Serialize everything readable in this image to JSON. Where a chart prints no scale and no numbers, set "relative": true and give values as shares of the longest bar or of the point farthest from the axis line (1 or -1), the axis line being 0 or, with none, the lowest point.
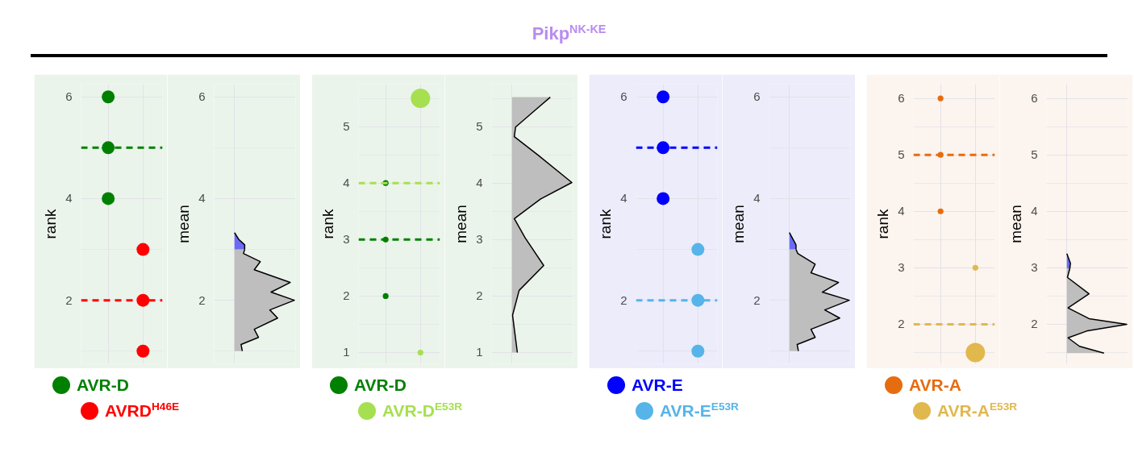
{
  "chart_data": [
    {
      "type": "other",
      "title": "Pikp$^{NK-KE}$"
    },
    {
      "type": "scatter",
      "ylabel": "rank",
      "categories": [
        null,
        null
      ],
      "ylim": [
        0.75,
        6.25
      ],
      "yticks": [
        2,
        4,
        6
      ],
      "grid": true,
      "marker": "circle",
      "legend": "bottom",
      "series": [
        {
          "name": "AVR-D",
          "color": "#008000",
          "values": [
            6,
            null
          ]
        },
        {
          "color": "#008000",
          "values": [
            5,
            null
          ]
        },
        {
          "color": "#008000",
          "values": [
            4,
            null
          ]
        },
        {
          "name": "AVRD$^{H46E}$",
          "color": "#ff0000",
          "values": [
            null,
            3
          ]
        },
        {
          "color": "#ff0000",
          "values": [
            null,
            2
          ]
        },
        {
          "color": "#ff0000",
          "values": [
            null,
            1
          ]
        }
      ],
      "ref_lines": [
        {
          "axis": "y",
          "value": 5,
          "color": "#008000",
          "line_style": "dashed"
        },
        {
          "axis": "y",
          "value": 2,
          "color": "#ff0000",
          "line_style": "dashed"
        }
      ]
    },
    {
      "type": "area",
      "orientation": "horizontal",
      "relative": true,
      "ylabel": "mean",
      "ylim": [
        0.75,
        6.25
      ],
      "yticks": [
        2,
        4,
        6
      ],
      "grid": true,
      "series": [
        {
          "color": "#bebebe",
          "x": [
            1.0,
            1.13,
            1.27,
            1.43,
            1.65,
            1.81,
            2.0,
            2.16,
            2.35,
            2.6,
            2.76,
            2.92,
            3.0
          ],
          "values": [
            0.13,
            0.11,
            0.4,
            0.33,
            0.72,
            0.59,
            1.0,
            0.61,
            0.93,
            0.33,
            0.43,
            0.15,
            0.17
          ]
        },
        {
          "color": "#6a6af5",
          "x": [
            3.0,
            3.09,
            3.2,
            3.33
          ],
          "values": [
            0.17,
            0.17,
            0.07,
            0
          ]
        }
      ]
    },
    {
      "type": "bubble",
      "ylabel": "rank",
      "categories": [
        null,
        null
      ],
      "ylim": [
        0.8,
        5.75
      ],
      "yticks": [
        1,
        2,
        3,
        4,
        5
      ],
      "grid": true,
      "legend": "bottom",
      "series": [
        {
          "name": "AVR-D",
          "color": "#008000",
          "values": [
            4,
            null
          ],
          "sizes": [
            0.09,
            null
          ]
        },
        {
          "color": "#008000",
          "values": [
            3,
            null
          ],
          "sizes": [
            0.09,
            null
          ]
        },
        {
          "color": "#008000",
          "values": [
            2,
            null
          ],
          "sizes": [
            0.09,
            null
          ]
        },
        {
          "name": "AVR-D$^{E53R}$",
          "color": "#a6e050",
          "values": [
            null,
            5.5
          ],
          "sizes": [
            null,
            1
          ]
        },
        {
          "color": "#a6e050",
          "values": [
            null,
            1
          ],
          "sizes": [
            null,
            0.09
          ]
        }
      ],
      "ref_lines": [
        {
          "axis": "y",
          "value": 4,
          "color": "#a6e050",
          "line_style": "dashed"
        },
        {
          "axis": "y",
          "value": 3,
          "color": "#008000",
          "line_style": "dashed"
        }
      ]
    },
    {
      "type": "area",
      "orientation": "horizontal",
      "relative": true,
      "ylabel": "mean",
      "ylim": [
        0.8,
        5.75
      ],
      "yticks": [
        1,
        2,
        3,
        4,
        5
      ],
      "grid": true,
      "series": [
        {
          "color": "#bebebe",
          "x": [
            1.0,
            1.66,
            2.1,
            2.54,
            3.03,
            3.37,
            3.72,
            4.01,
            4.5,
            4.82,
            4.99,
            5.33,
            5.52
          ],
          "values": [
            0.09,
            0.01,
            0.12,
            0.53,
            0.22,
            0.04,
            0.48,
            1.0,
            0.43,
            0.04,
            0.06,
            0.43,
            0.64
          ]
        }
      ]
    },
    {
      "type": "scatter",
      "ylabel": "rank",
      "categories": [
        null,
        null
      ],
      "ylim": [
        0.75,
        6.25
      ],
      "yticks": [
        2,
        4,
        6
      ],
      "grid": true,
      "marker": "circle",
      "legend": "bottom",
      "series": [
        {
          "name": "AVR-E",
          "color": "#0000ff",
          "values": [
            6,
            null
          ]
        },
        {
          "color": "#0000ff",
          "values": [
            5,
            null
          ]
        },
        {
          "color": "#0000ff",
          "values": [
            4,
            null
          ]
        },
        {
          "name": "AVR-E$^{E53R}$",
          "color": "#56b4e9",
          "values": [
            null,
            3
          ]
        },
        {
          "color": "#56b4e9",
          "values": [
            null,
            2
          ]
        },
        {
          "color": "#56b4e9",
          "values": [
            null,
            1
          ]
        }
      ],
      "ref_lines": [
        {
          "axis": "y",
          "value": 5,
          "color": "#0000ff",
          "line_style": "dashed"
        },
        {
          "axis": "y",
          "value": 2,
          "color": "#56b4e9",
          "line_style": "dashed"
        }
      ]
    },
    {
      "type": "area",
      "orientation": "horizontal",
      "relative": true,
      "ylabel": "mean",
      "ylim": [
        0.75,
        6.25
      ],
      "yticks": [
        2,
        4,
        6
      ],
      "grid": true,
      "series": [
        {
          "color": "#bebebe",
          "x": [
            1.0,
            1.13,
            1.27,
            1.43,
            1.65,
            1.81,
            2.0,
            2.16,
            2.35,
            2.54,
            2.71,
            2.92,
            3.0
          ],
          "values": [
            0.15,
            0.13,
            0.43,
            0.36,
            0.84,
            0.59,
            1.0,
            0.55,
            0.82,
            0.36,
            0.43,
            0.14,
            0.11
          ]
        },
        {
          "color": "#6a6af5",
          "x": [
            3.0,
            3.09,
            3.33
          ],
          "values": [
            0.11,
            0.11,
            0
          ]
        }
      ]
    },
    {
      "type": "bubble",
      "ylabel": "rank",
      "categories": [
        null,
        null
      ],
      "ylim": [
        1.3,
        6.25
      ],
      "yticks": [
        2,
        3,
        4,
        5,
        6
      ],
      "grid": true,
      "legend": "bottom",
      "series": [
        {
          "name": "AVR-A",
          "color": "#e66c10",
          "values": [
            6,
            null
          ],
          "sizes": [
            0.09,
            null
          ]
        },
        {
          "color": "#e66c10",
          "values": [
            5,
            null
          ],
          "sizes": [
            0.09,
            null
          ]
        },
        {
          "color": "#e66c10",
          "values": [
            4,
            null
          ],
          "sizes": [
            0.09,
            null
          ]
        },
        {
          "name": "AVR-A$^{E53R}$",
          "color": "#e1b84e",
          "values": [
            null,
            3
          ],
          "sizes": [
            null,
            0.09
          ]
        },
        {
          "color": "#e1b84e",
          "values": [
            null,
            1.5
          ],
          "sizes": [
            null,
            1
          ]
        }
      ],
      "ref_lines": [
        {
          "axis": "y",
          "value": 5,
          "color": "#e66c10",
          "line_style": "dashed"
        },
        {
          "axis": "y",
          "value": 2,
          "color": "#e1b84e",
          "line_style": "dashed"
        }
      ]
    },
    {
      "type": "area",
      "orientation": "horizontal",
      "relative": true,
      "ylabel": "mean",
      "ylim": [
        1.3,
        6.25
      ],
      "yticks": [
        2,
        3,
        4,
        5,
        6
      ],
      "grid": true,
      "series": [
        {
          "color": "#bebebe",
          "x": [
            1.49,
            1.61,
            1.76,
            1.88,
            2.0,
            2.1,
            2.29,
            2.54,
            2.83,
            2.99
          ],
          "values": [
            0.62,
            0.21,
            0.02,
            0.33,
            1.0,
            0.37,
            0.02,
            0.37,
            0.01,
            0.05
          ]
        },
        {
          "color": "#6a6af5",
          "x": [
            2.99,
            3.08,
            3.25
          ],
          "values": [
            0.05,
            0.06,
            0
          ]
        }
      ]
    }
  ]
}
